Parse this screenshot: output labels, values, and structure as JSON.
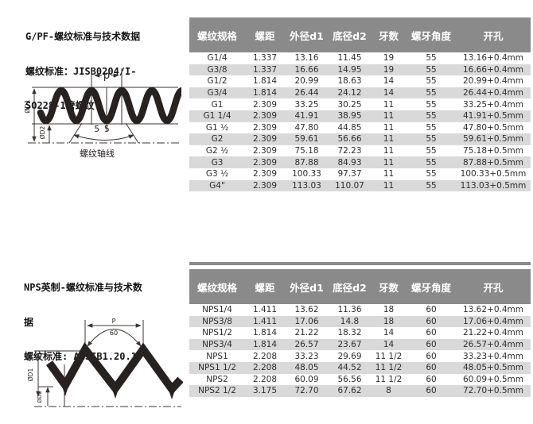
{
  "colors": {
    "header_bg": "#8a8a8a",
    "header_text": "#ffffff",
    "row_alt_bg": "#d9d9d9",
    "body_text": "#2e2e2e",
    "diagram_ink": "#272220"
  },
  "sections": [
    {
      "id": "g-pf",
      "title_lines": [
        "G/PF-螺纹标准与技术数据",
        "螺纹标准：JISB0204/I-",
        "SO228-1管螺纹"
      ],
      "diagram": {
        "type": "round-thread-profile",
        "pitch_label": "p",
        "angle_label": "55",
        "d1_label": "ØD1",
        "d2_label": "ØD2",
        "axis_label": "螺纹轴线"
      },
      "table": {
        "headers": [
          "螺纹规格",
          "螺距",
          "外径d1",
          "底径d2",
          "牙数",
          "螺牙角度",
          "开孔"
        ],
        "rows": [
          [
            "G1/4",
            "1.337",
            "13.16",
            "11.45",
            "19",
            "55",
            "13.16+0.4mm"
          ],
          [
            "G3/8",
            "1.337",
            "16.66",
            "14.95",
            "19",
            "55",
            "16.66+0.4mm"
          ],
          [
            "G1/2",
            "1.814",
            "20.99",
            "18.63",
            "14",
            "55",
            "20.99+0.4mm"
          ],
          [
            "G3/4",
            "1.814",
            "26.44",
            "24.12",
            "14",
            "55",
            "26.44+0.4mm"
          ],
          [
            "G1",
            "2.309",
            "33.25",
            "30.25",
            "11",
            "55",
            "33.25+0.4mm"
          ],
          [
            "G1 1/4",
            "2.309",
            "41.91",
            "38.95",
            "11",
            "55",
            "41.91+0.5mm"
          ],
          [
            "G1 ½",
            "2.309",
            "47.80",
            "44.85",
            "11",
            "55",
            "47.80+0.5mm"
          ],
          [
            "G2",
            "2.309",
            "59.61",
            "56.66",
            "11",
            "55",
            "59.61+0.5mm"
          ],
          [
            "G2 ½",
            "2.309",
            "75.18",
            "72.23",
            "11",
            "55",
            "75.18+0.5mm"
          ],
          [
            "G3",
            "2.309",
            "87.88",
            "84.93",
            "11",
            "55",
            "87.88+0.5mm"
          ],
          [
            "G3 ½",
            "2.309",
            "100.33",
            "97.37",
            "11",
            "55",
            "100.33+0.5mm"
          ],
          [
            "G4\"",
            "2.309",
            "113.03",
            "110.07",
            "11",
            "55",
            "113.03+0.5mm"
          ]
        ]
      }
    },
    {
      "id": "nps",
      "title_lines": [
        "NPS英制-螺纹标准与技术数",
        "据",
        "螺纹标准: ANSIB1.20.1"
      ],
      "diagram": {
        "type": "v-thread-profile",
        "pitch_label": "P",
        "angle_label": "60",
        "d1_label": "ØD1",
        "d2_label": "ØD2"
      },
      "table": {
        "headers": [
          "螺纹规格",
          "螺距",
          "外径d1",
          "底径d2",
          "牙数",
          "螺牙角度",
          "开孔"
        ],
        "rows": [
          [
            "NPS1/4",
            "1.411",
            "13.62",
            "11.36",
            "18",
            "60",
            "13.62+0.4mm"
          ],
          [
            "NPS3/8",
            "1.411",
            "17.06",
            "14.8",
            "18",
            "60",
            "17.06+0.4mm"
          ],
          [
            "NPS1/2",
            "1.814",
            "21.22",
            "18.32",
            "14",
            "60",
            "21.22+0.4mm"
          ],
          [
            "NPS3/4",
            "1.814",
            "26.57",
            "23.67",
            "14",
            "60",
            "26.57+0.4mm"
          ],
          [
            "NPS1",
            "2.208",
            "33.23",
            "29.69",
            "11 1/2",
            "60",
            "33.23+0.4mm"
          ],
          [
            "NPS1 1/2",
            "2.208",
            "48.05",
            "44.52",
            "11 1/2",
            "60",
            "48.05+0.5mm"
          ],
          [
            "NPS2",
            "2.208",
            "60.09",
            "56.56",
            "11 1/2",
            "60",
            "60.09+0.5mm"
          ],
          [
            "NPS2 1/2",
            "3.175",
            "72.70",
            "67.62",
            "8",
            "60",
            "72.70+0.5mm"
          ]
        ]
      }
    }
  ]
}
